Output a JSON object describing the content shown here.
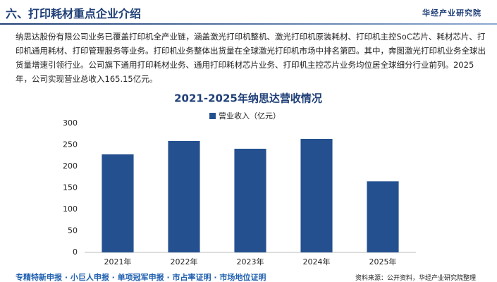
{
  "header": {
    "title": "六、打印耗材重点企业介绍",
    "logo": "华经产业研究院"
  },
  "paragraph": "纳思达股份有限公司业务已覆盖打印机全产业链，涵盖激光打印机整机、激光打印机原装耗材、打印机主控SoC芯片、耗材芯片、打印机通用耗材、打印管理服务等业务。打印机业务整体出货量在全球激光打印机市场中排名第四。其中，奔图激光打印机业务全球出货量增速引领行业。公司旗下通用打印耗材业务、通用打印耗材芯片业务、打印机主控芯片业务均位居全球细分行业前列。2025年，公司实现营业总收入165.15亿元。",
  "chart_data": {
    "type": "bar",
    "title": "2021-2025年纳思达营收情况",
    "categories": [
      "2021年",
      "2022年",
      "2023年",
      "2024年",
      "2025年"
    ],
    "series": [
      {
        "name": "营业收入（亿元）",
        "color": "#24508f",
        "values": [
          228,
          259,
          241,
          264,
          165.15
        ]
      }
    ],
    "ylim": [
      0,
      300
    ],
    "yticks": [
      0,
      50,
      100,
      150,
      200,
      250,
      300
    ],
    "grid": false,
    "legend": "top"
  },
  "footer": {
    "services": "专精特新申报 · 小巨人申报 · 单项冠军申报 · 市占率证明 · 市场地位证明",
    "source": "资料来源：公开资料，华经产业研究院整理"
  }
}
